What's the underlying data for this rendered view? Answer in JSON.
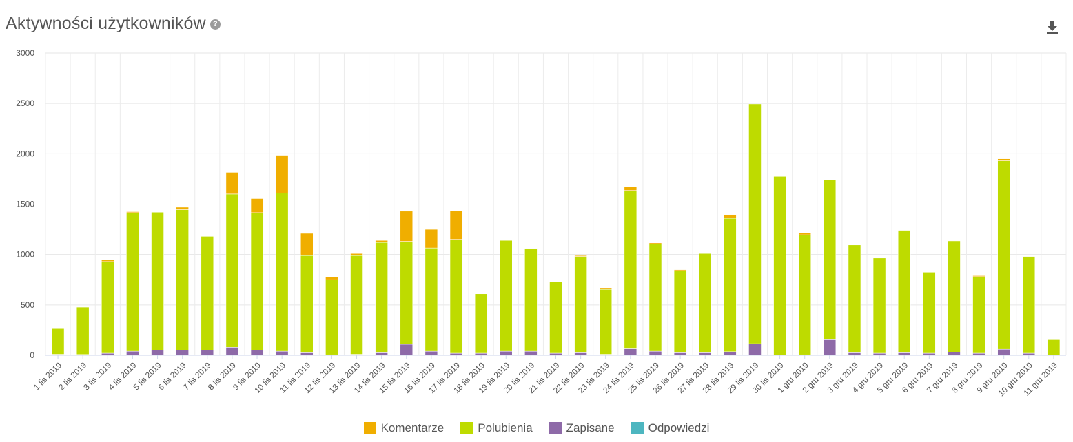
{
  "header": {
    "title": "Aktywności użytkowników",
    "help_icon": "question-circle-icon",
    "download_icon": "download-icon"
  },
  "chart_data": {
    "type": "bar",
    "stacked": true,
    "title": "Aktywności użytkowników",
    "xlabel": "",
    "ylabel": "",
    "ylim": [
      0,
      3000
    ],
    "yticks": [
      0,
      500,
      1000,
      1500,
      2000,
      2500,
      3000
    ],
    "grid": true,
    "legend_position": "bottom",
    "categories": [
      "1 lis 2019",
      "2 lis 2019",
      "3 lis 2019",
      "4 lis 2019",
      "5 lis 2019",
      "6 lis 2019",
      "7 lis 2019",
      "8 lis 2019",
      "9 lis 2019",
      "10 lis 2019",
      "11 lis 2019",
      "12 lis 2019",
      "13 lis 2019",
      "14 lis 2019",
      "15 lis 2019",
      "16 lis 2019",
      "17 lis 2019",
      "18 lis 2019",
      "19 lis 2019",
      "20 lis 2019",
      "21 lis 2019",
      "22 lis 2019",
      "23 lis 2019",
      "24 lis 2019",
      "25 lis 2019",
      "26 lis 2019",
      "27 lis 2019",
      "28 lis 2019",
      "29 lis 2019",
      "30 lis 2019",
      "1 gru 2019",
      "2 gru 2019",
      "3 gru 2019",
      "4 gru 2019",
      "5 gru 2019",
      "6 gru 2019",
      "7 gru 2019",
      "8 gru 2019",
      "9 gru 2019",
      "10 gru 2019",
      "11 gru 2019"
    ],
    "series": [
      {
        "name": "Odpowiedzi",
        "color": "#4db6c0",
        "values": [
          0,
          0,
          0,
          0,
          0,
          0,
          0,
          0,
          0,
          0,
          0,
          0,
          0,
          0,
          0,
          0,
          0,
          0,
          0,
          0,
          0,
          0,
          0,
          0,
          0,
          0,
          0,
          0,
          0,
          0,
          0,
          0,
          0,
          0,
          0,
          0,
          0,
          0,
          0,
          0,
          0
        ]
      },
      {
        "name": "Zapisane",
        "color": "#8e6aa8",
        "values": [
          10,
          8,
          20,
          40,
          50,
          50,
          50,
          80,
          50,
          40,
          25,
          5,
          10,
          25,
          110,
          40,
          20,
          20,
          40,
          40,
          20,
          25,
          10,
          65,
          40,
          25,
          25,
          35,
          115,
          0,
          5,
          155,
          25,
          20,
          25,
          20,
          30,
          20,
          60,
          20,
          0
        ]
      },
      {
        "name": "Polubienia",
        "color": "#bedb00",
        "values": [
          255,
          470,
          910,
          1375,
          1370,
          1395,
          1130,
          1520,
          1365,
          1570,
          965,
          745,
          980,
          1095,
          1020,
          1025,
          1130,
          590,
          1100,
          1020,
          710,
          955,
          645,
          1570,
          1065,
          815,
          985,
          1325,
          2380,
          1775,
          1190,
          1585,
          1070,
          945,
          1215,
          805,
          1105,
          760,
          1870,
          960,
          155
        ]
      },
      {
        "name": "Komentarze",
        "color": "#f0ae00",
        "values": [
          0,
          0,
          15,
          10,
          0,
          25,
          0,
          215,
          140,
          375,
          220,
          25,
          20,
          20,
          300,
          185,
          285,
          0,
          10,
          0,
          0,
          10,
          10,
          35,
          10,
          10,
          0,
          35,
          0,
          0,
          20,
          0,
          0,
          0,
          0,
          0,
          0,
          10,
          20,
          0,
          0
        ]
      }
    ]
  },
  "legend": [
    {
      "label": "Komentarze",
      "color": "#f0ae00"
    },
    {
      "label": "Polubienia",
      "color": "#bedb00"
    },
    {
      "label": "Zapisane",
      "color": "#8e6aa8"
    },
    {
      "label": "Odpowiedzi",
      "color": "#4db6c0"
    }
  ]
}
